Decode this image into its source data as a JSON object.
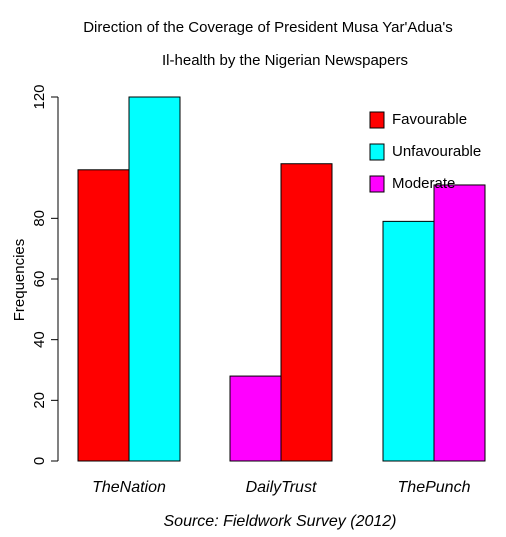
{
  "chart_data": {
    "type": "bar",
    "title": [
      "Direction of the Coverage of President Musa Yar'Adua's",
      "Il-health by the Nigerian Newspapers"
    ],
    "xlabel": "Source: Fieldwork Survey (2012)",
    "ylabel": "Frequencies",
    "categories": [
      "TheNation",
      "DailyTrust",
      "ThePunch"
    ],
    "series": [
      {
        "name": "Favourable",
        "color": "#ff0000",
        "values": [
          96,
          98,
          null
        ]
      },
      {
        "name": "Unfavourable",
        "color": "#00ffff",
        "values": [
          120,
          null,
          79
        ]
      },
      {
        "name": "Moderate",
        "color": "#ff00ff",
        "values": [
          null,
          28,
          91
        ]
      }
    ],
    "ylim": [
      0,
      120
    ],
    "yticks": [
      0,
      20,
      40,
      60,
      80,
      120
    ],
    "legend": "top-right"
  }
}
